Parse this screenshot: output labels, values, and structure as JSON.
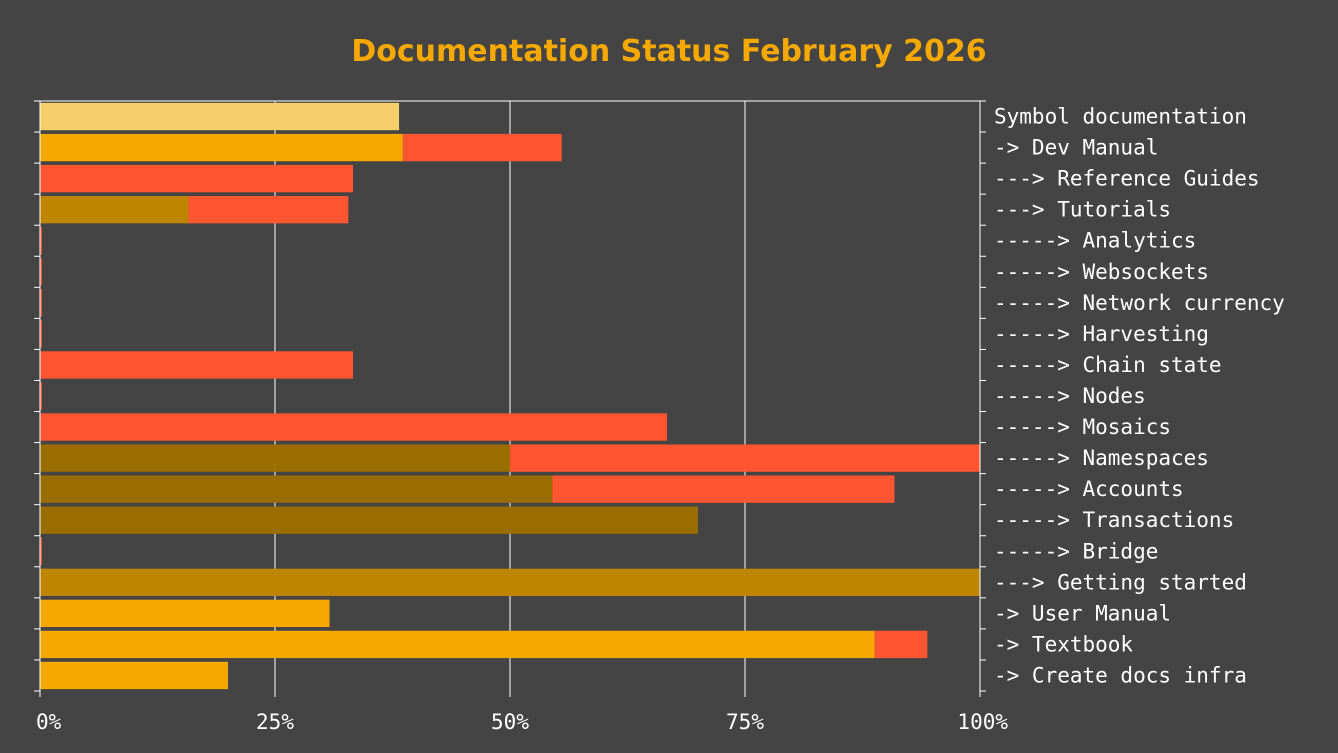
{
  "chart_data": {
    "type": "bar",
    "orientation": "horizontal",
    "stacked": true,
    "title": "Documentation Status February 2026",
    "xlim": [
      0,
      100
    ],
    "x_ticks": [
      "0%",
      "25%",
      "50%",
      "75%",
      "100%"
    ],
    "grid": "vertical",
    "colors": {
      "background": "#444444",
      "title": "#f5a800",
      "gridline": "#ffffff",
      "remaining": "#ff5530"
    },
    "categories": [
      "Symbol documentation",
      "-> Dev Manual",
      "---> Reference Guides",
      "---> Tutorials",
      "-----> Analytics",
      "-----> Websockets",
      "-----> Network currency",
      "-----> Harvesting",
      "-----> Chain state",
      "-----> Nodes",
      "-----> Mosaics",
      "-----> Namespaces",
      "-----> Accounts",
      "-----> Transactions",
      "-----> Bridge",
      "---> Getting started",
      "-> User Manual",
      "-> Textbook",
      "-> Create docs infra"
    ],
    "done_colors": [
      "#f7cf6a",
      "#f5a800",
      "#bf8400",
      "#bf8400",
      "#9a6d00",
      "#9a6d00",
      "#9a6d00",
      "#9a6d00",
      "#9a6d00",
      "#9a6d00",
      "#9a6d00",
      "#9a6d00",
      "#9a6d00",
      "#9a6d00",
      "#9a6d00",
      "#bf8400",
      "#f5a800",
      "#f5a800",
      "#f5a800"
    ],
    "series": [
      {
        "key": "done",
        "values": [
          38.2,
          38.6,
          0,
          15.8,
          0,
          0,
          0,
          0,
          0,
          0,
          0,
          50.0,
          54.5,
          70.0,
          0,
          100.0,
          30.8,
          88.8,
          20.0
        ]
      },
      {
        "key": "remaining",
        "values": [
          0,
          16.9,
          33.3,
          17.0,
          0.2,
          0.2,
          0.2,
          0.2,
          33.3,
          0.2,
          66.7,
          50.0,
          36.4,
          0,
          0.2,
          0,
          0,
          5.6,
          0
        ]
      }
    ]
  }
}
